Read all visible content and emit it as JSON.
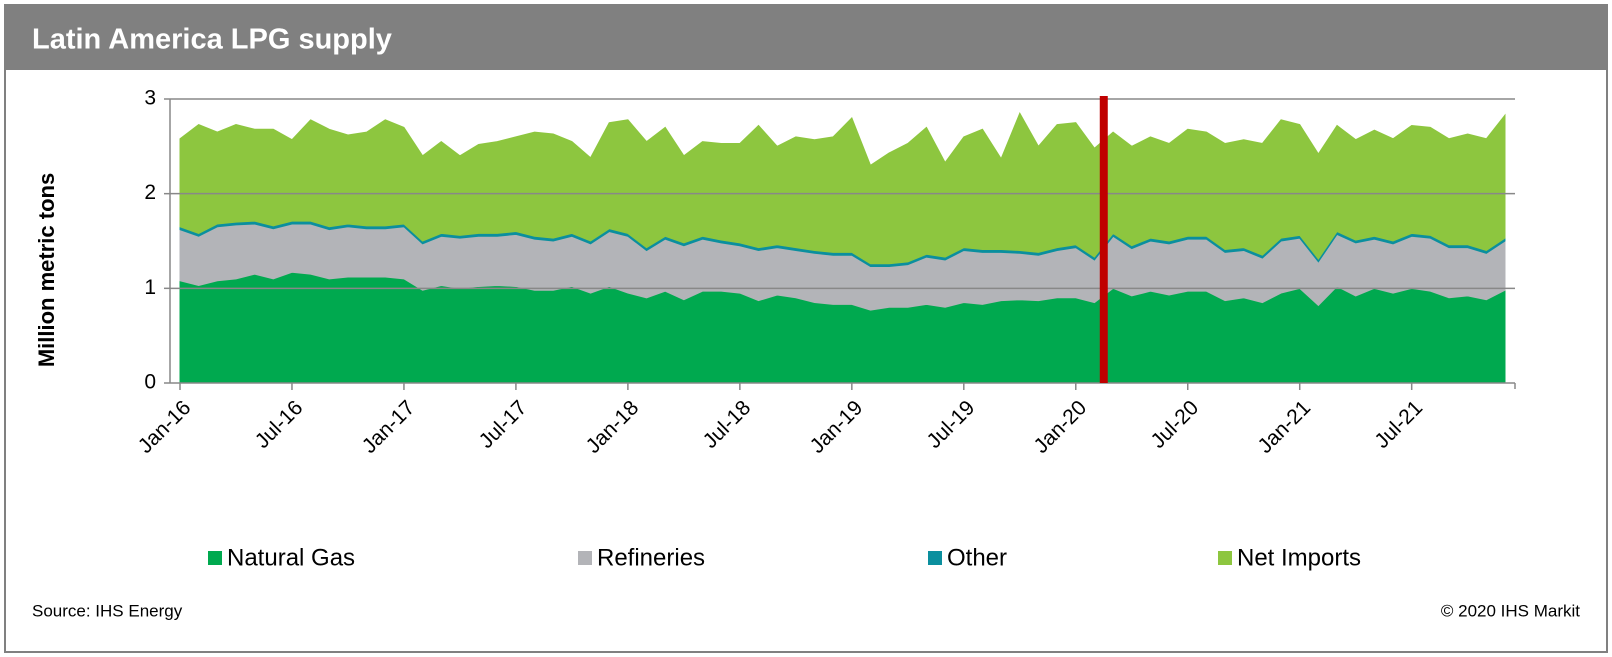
{
  "chart_data": {
    "type": "stacked_area",
    "title": "Latin America LPG supply",
    "y_label": "Million metric tons",
    "source": "Source:  IHS Energy",
    "copyright": "© 2020  IHS Markit",
    "categories": [
      "Jan-16",
      null,
      null,
      null,
      null,
      null,
      "Jul-16",
      null,
      null,
      null,
      null,
      null,
      "Jan-17",
      null,
      null,
      null,
      null,
      null,
      "Jul-17",
      null,
      null,
      null,
      null,
      null,
      "Jan-18",
      null,
      null,
      null,
      null,
      null,
      "Jul-18",
      null,
      null,
      null,
      null,
      null,
      "Jan-19",
      null,
      null,
      null,
      null,
      null,
      "Jul-19",
      null,
      null,
      null,
      null,
      null,
      "Jan-20",
      null,
      null,
      null,
      null,
      null,
      "Jul-20",
      null,
      null,
      null,
      null,
      null,
      "Jan-21",
      null,
      null,
      null,
      null,
      null,
      "Jul-21",
      null,
      null,
      null,
      null,
      null
    ],
    "series": [
      {
        "name": "Natural Gas",
        "color": "#00a94f",
        "values": [
          1.08,
          1.03,
          1.08,
          1.1,
          1.15,
          1.1,
          1.17,
          1.15,
          1.1,
          1.12,
          1.12,
          1.12,
          1.1,
          0.98,
          1.03,
          1.0,
          1.02,
          1.03,
          1.02,
          0.98,
          0.98,
          1.02,
          0.95,
          1.02,
          0.95,
          0.9,
          0.97,
          0.88,
          0.97,
          0.97,
          0.95,
          0.87,
          0.93,
          0.9,
          0.85,
          0.83,
          0.83,
          0.77,
          0.8,
          0.8,
          0.83,
          0.8,
          0.85,
          0.83,
          0.87,
          0.88,
          0.87,
          0.9,
          0.9,
          0.85,
          1.0,
          0.92,
          0.97,
          0.93,
          0.97,
          0.97,
          0.87,
          0.9,
          0.85,
          0.95,
          1.0,
          0.82,
          1.02,
          0.92,
          1.0,
          0.95,
          1.0,
          0.97,
          0.9,
          0.92,
          0.88,
          0.98
        ]
      },
      {
        "name": "Refineries",
        "color": "#b3b4b8",
        "values": [
          0.54,
          0.52,
          0.57,
          0.57,
          0.53,
          0.53,
          0.51,
          0.53,
          0.52,
          0.53,
          0.51,
          0.51,
          0.55,
          0.49,
          0.52,
          0.53,
          0.53,
          0.52,
          0.55,
          0.54,
          0.52,
          0.53,
          0.52,
          0.58,
          0.6,
          0.5,
          0.55,
          0.57,
          0.55,
          0.51,
          0.5,
          0.53,
          0.5,
          0.5,
          0.52,
          0.52,
          0.52,
          0.46,
          0.43,
          0.45,
          0.5,
          0.5,
          0.55,
          0.55,
          0.51,
          0.49,
          0.48,
          0.5,
          0.53,
          0.45,
          0.55,
          0.5,
          0.53,
          0.54,
          0.55,
          0.55,
          0.51,
          0.5,
          0.47,
          0.55,
          0.53,
          0.46,
          0.55,
          0.56,
          0.52,
          0.52,
          0.55,
          0.56,
          0.53,
          0.51,
          0.49,
          0.52
        ]
      },
      {
        "name": "Other",
        "color": "#0b8f9e",
        "values": [
          0.03,
          0.03,
          0.03,
          0.03,
          0.03,
          0.03,
          0.03,
          0.03,
          0.03,
          0.03,
          0.03,
          0.03,
          0.03,
          0.03,
          0.03,
          0.03,
          0.03,
          0.03,
          0.03,
          0.03,
          0.03,
          0.03,
          0.03,
          0.03,
          0.03,
          0.03,
          0.03,
          0.03,
          0.03,
          0.03,
          0.03,
          0.03,
          0.03,
          0.03,
          0.03,
          0.03,
          0.03,
          0.03,
          0.03,
          0.03,
          0.03,
          0.03,
          0.03,
          0.03,
          0.03,
          0.03,
          0.03,
          0.03,
          0.03,
          0.03,
          0.03,
          0.03,
          0.03,
          0.03,
          0.03,
          0.03,
          0.03,
          0.03,
          0.03,
          0.03,
          0.03,
          0.03,
          0.03,
          0.03,
          0.03,
          0.03,
          0.03,
          0.03,
          0.03,
          0.03,
          0.03,
          0.03
        ]
      },
      {
        "name": "Net Imports",
        "color": "#8dc63f",
        "values": [
          0.93,
          1.15,
          0.97,
          1.03,
          0.97,
          1.02,
          0.86,
          1.07,
          1.03,
          0.94,
          0.99,
          1.12,
          1.02,
          0.9,
          0.97,
          0.84,
          0.94,
          0.97,
          1.0,
          1.1,
          1.1,
          0.97,
          0.88,
          1.12,
          1.2,
          1.12,
          1.15,
          0.92,
          1.0,
          1.02,
          1.05,
          1.29,
          1.04,
          1.17,
          1.17,
          1.22,
          1.42,
          1.04,
          1.17,
          1.25,
          1.34,
          1.0,
          1.17,
          1.27,
          0.96,
          1.45,
          1.12,
          1.3,
          1.29,
          1.15,
          1.07,
          1.05,
          1.07,
          1.03,
          1.13,
          1.1,
          1.12,
          1.14,
          1.18,
          1.25,
          1.17,
          1.11,
          1.12,
          1.06,
          1.12,
          1.08,
          1.14,
          1.14,
          1.12,
          1.17,
          1.18,
          1.3
        ]
      }
    ],
    "ylim": [
      0,
      3
    ],
    "yticks": [
      0,
      1,
      2,
      3
    ],
    "grid": true,
    "vline": {
      "x": 49.5,
      "color": "#c00000"
    }
  }
}
